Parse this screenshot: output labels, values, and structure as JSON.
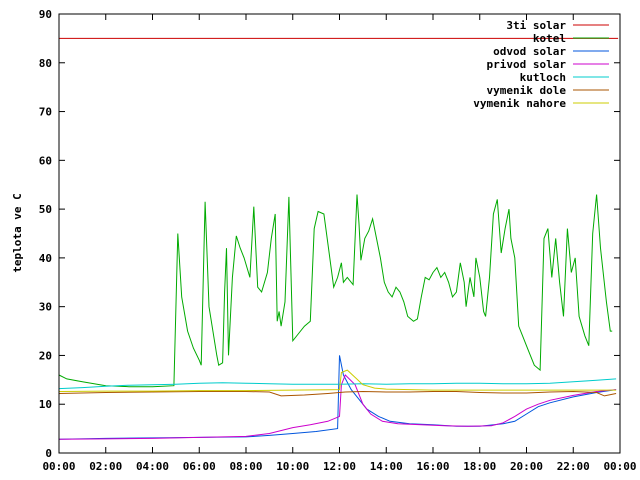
{
  "chart_data": {
    "type": "line",
    "title": "",
    "xlabel": "",
    "ylabel": "teplota ve C",
    "xlim": [
      "00:00",
      "24:00"
    ],
    "ylim": [
      0,
      90
    ],
    "x_ticks": [
      "00:00",
      "02:00",
      "04:00",
      "06:00",
      "08:00",
      "10:00",
      "12:00",
      "14:00",
      "16:00",
      "18:00",
      "20:00",
      "22:00",
      "00:00"
    ],
    "y_ticks": [
      0,
      10,
      20,
      30,
      40,
      50,
      60,
      70,
      80,
      90
    ],
    "grid": false,
    "legend_position": "top-right",
    "series": [
      {
        "name": "3ti solar",
        "color": "#cc0000",
        "points": [
          [
            "00:00",
            85
          ],
          [
            "23:55",
            85
          ]
        ]
      },
      {
        "name": "kotel",
        "color": "#00aa00",
        "points": [
          [
            "00:00",
            16
          ],
          [
            "00:20",
            15.2
          ],
          [
            "01:00",
            14.6
          ],
          [
            "02:00",
            13.8
          ],
          [
            "03:00",
            13.6
          ],
          [
            "04:00",
            13.6
          ],
          [
            "04:55",
            13.8
          ],
          [
            "05:05",
            45
          ],
          [
            "05:15",
            32
          ],
          [
            "05:30",
            25
          ],
          [
            "05:45",
            21.5
          ],
          [
            "06:00",
            19
          ],
          [
            "06:05",
            18
          ],
          [
            "06:15",
            51.5
          ],
          [
            "06:25",
            30
          ],
          [
            "06:35",
            25
          ],
          [
            "06:45",
            20
          ],
          [
            "06:50",
            18
          ],
          [
            "07:00",
            18.5
          ],
          [
            "07:05",
            33
          ],
          [
            "07:10",
            42
          ],
          [
            "07:15",
            20
          ],
          [
            "07:25",
            36
          ],
          [
            "07:35",
            44.5
          ],
          [
            "07:45",
            42
          ],
          [
            "07:55",
            40
          ],
          [
            "08:10",
            36
          ],
          [
            "08:20",
            50.5
          ],
          [
            "08:30",
            34
          ],
          [
            "08:40",
            33
          ],
          [
            "08:55",
            37
          ],
          [
            "09:05",
            44
          ],
          [
            "09:15",
            49
          ],
          [
            "09:20",
            27
          ],
          [
            "09:25",
            29
          ],
          [
            "09:30",
            26
          ],
          [
            "09:40",
            31
          ],
          [
            "09:50",
            52.5
          ],
          [
            "10:00",
            23
          ],
          [
            "10:15",
            24.5
          ],
          [
            "10:30",
            26
          ],
          [
            "10:45",
            27
          ],
          [
            "10:55",
            46
          ],
          [
            "11:05",
            49.5
          ],
          [
            "11:20",
            49
          ],
          [
            "11:35",
            40
          ],
          [
            "11:45",
            34
          ],
          [
            "11:55",
            36
          ],
          [
            "12:05",
            39
          ],
          [
            "12:10",
            35
          ],
          [
            "12:20",
            36
          ],
          [
            "12:35",
            34.5
          ],
          [
            "12:45",
            53
          ],
          [
            "12:50",
            47
          ],
          [
            "12:55",
            39.5
          ],
          [
            "13:05",
            44
          ],
          [
            "13:15",
            45.5
          ],
          [
            "13:25",
            48
          ],
          [
            "13:35",
            44
          ],
          [
            "13:45",
            40
          ],
          [
            "13:55",
            35
          ],
          [
            "14:05",
            33
          ],
          [
            "14:15",
            32
          ],
          [
            "14:25",
            34
          ],
          [
            "14:35",
            33
          ],
          [
            "14:45",
            31
          ],
          [
            "14:55",
            28
          ],
          [
            "15:10",
            27
          ],
          [
            "15:20",
            27.5
          ],
          [
            "15:30",
            32
          ],
          [
            "15:40",
            36
          ],
          [
            "15:50",
            35.5
          ],
          [
            "16:00",
            37
          ],
          [
            "16:10",
            38
          ],
          [
            "16:20",
            36
          ],
          [
            "16:30",
            37
          ],
          [
            "16:40",
            35
          ],
          [
            "16:50",
            32
          ],
          [
            "17:00",
            33
          ],
          [
            "17:10",
            39
          ],
          [
            "17:20",
            35
          ],
          [
            "17:25",
            30
          ],
          [
            "17:35",
            36
          ],
          [
            "17:45",
            32
          ],
          [
            "17:50",
            40
          ],
          [
            "18:00",
            36
          ],
          [
            "18:10",
            29
          ],
          [
            "18:15",
            28
          ],
          [
            "18:25",
            36
          ],
          [
            "18:35",
            49
          ],
          [
            "18:45",
            52
          ],
          [
            "18:55",
            41
          ],
          [
            "19:05",
            46
          ],
          [
            "19:15",
            50
          ],
          [
            "19:20",
            44
          ],
          [
            "19:30",
            40
          ],
          [
            "19:40",
            26
          ],
          [
            "19:50",
            24
          ],
          [
            "20:05",
            21
          ],
          [
            "20:20",
            18
          ],
          [
            "20:35",
            17
          ],
          [
            "20:45",
            44
          ],
          [
            "20:55",
            46
          ],
          [
            "21:05",
            36
          ],
          [
            "21:15",
            44
          ],
          [
            "21:25",
            35
          ],
          [
            "21:35",
            28
          ],
          [
            "21:45",
            46
          ],
          [
            "21:55",
            37
          ],
          [
            "22:05",
            40
          ],
          [
            "22:15",
            28
          ],
          [
            "22:30",
            24
          ],
          [
            "22:40",
            22
          ],
          [
            "22:50",
            45
          ],
          [
            "23:00",
            53
          ],
          [
            "23:10",
            42
          ],
          [
            "23:25",
            31
          ],
          [
            "23:35",
            25
          ],
          [
            "23:40",
            25
          ]
        ]
      },
      {
        "name": "odvod solar",
        "color": "#0055dd",
        "points": [
          [
            "00:00",
            2.8
          ],
          [
            "02:00",
            3.0
          ],
          [
            "04:00",
            3.1
          ],
          [
            "06:00",
            3.2
          ],
          [
            "08:00",
            3.3
          ],
          [
            "09:00",
            3.6
          ],
          [
            "10:00",
            4.0
          ],
          [
            "11:00",
            4.4
          ],
          [
            "11:55",
            5.0
          ],
          [
            "12:00",
            20
          ],
          [
            "12:10",
            16
          ],
          [
            "12:30",
            13
          ],
          [
            "12:50",
            11
          ],
          [
            "13:10",
            9
          ],
          [
            "13:40",
            7.5
          ],
          [
            "14:10",
            6.5
          ],
          [
            "15:00",
            6.0
          ],
          [
            "16:00",
            5.8
          ],
          [
            "17:00",
            5.5
          ],
          [
            "18:00",
            5.5
          ],
          [
            "19:00",
            6.0
          ],
          [
            "19:30",
            6.5
          ],
          [
            "20:00",
            8
          ],
          [
            "20:30",
            9.5
          ],
          [
            "21:00",
            10.3
          ],
          [
            "22:00",
            11.5
          ],
          [
            "23:00",
            12.4
          ],
          [
            "23:50",
            13.0
          ]
        ]
      },
      {
        "name": "privod solar",
        "color": "#cc00cc",
        "points": [
          [
            "00:00",
            2.8
          ],
          [
            "02:00",
            2.9
          ],
          [
            "04:00",
            3.0
          ],
          [
            "06:00",
            3.2
          ],
          [
            "08:00",
            3.4
          ],
          [
            "09:00",
            4.0
          ],
          [
            "10:00",
            5.2
          ],
          [
            "10:45",
            5.8
          ],
          [
            "11:30",
            6.5
          ],
          [
            "12:00",
            7.5
          ],
          [
            "12:05",
            14
          ],
          [
            "12:15",
            16
          ],
          [
            "12:40",
            14
          ],
          [
            "13:00",
            10
          ],
          [
            "13:20",
            8
          ],
          [
            "13:50",
            6.5
          ],
          [
            "14:30",
            6.0
          ],
          [
            "15:30",
            5.8
          ],
          [
            "16:30",
            5.6
          ],
          [
            "17:30",
            5.5
          ],
          [
            "18:30",
            5.6
          ],
          [
            "19:00",
            6.2
          ],
          [
            "19:30",
            7.5
          ],
          [
            "20:00",
            9.0
          ],
          [
            "20:30",
            10
          ],
          [
            "21:00",
            10.8
          ],
          [
            "22:00",
            11.8
          ],
          [
            "23:00",
            12.6
          ],
          [
            "23:50",
            13.0
          ]
        ]
      },
      {
        "name": "kutloch",
        "color": "#00cccc",
        "points": [
          [
            "00:00",
            13.2
          ],
          [
            "01:00",
            13.4
          ],
          [
            "02:00",
            13.7
          ],
          [
            "03:00",
            13.9
          ],
          [
            "04:00",
            14.0
          ],
          [
            "05:00",
            14.1
          ],
          [
            "06:00",
            14.3
          ],
          [
            "07:00",
            14.4
          ],
          [
            "08:00",
            14.3
          ],
          [
            "09:00",
            14.2
          ],
          [
            "10:00",
            14.1
          ],
          [
            "11:00",
            14.1
          ],
          [
            "12:00",
            14.1
          ],
          [
            "13:00",
            14.2
          ],
          [
            "14:00",
            14.1
          ],
          [
            "15:00",
            14.2
          ],
          [
            "16:00",
            14.2
          ],
          [
            "17:00",
            14.3
          ],
          [
            "18:00",
            14.3
          ],
          [
            "19:00",
            14.2
          ],
          [
            "20:00",
            14.2
          ],
          [
            "21:00",
            14.3
          ],
          [
            "22:00",
            14.6
          ],
          [
            "23:00",
            14.9
          ],
          [
            "23:50",
            15.2
          ]
        ]
      },
      {
        "name": "vymenik dole",
        "color": "#aa5500",
        "points": [
          [
            "00:00",
            12.2
          ],
          [
            "02:00",
            12.4
          ],
          [
            "04:00",
            12.5
          ],
          [
            "06:00",
            12.6
          ],
          [
            "08:00",
            12.6
          ],
          [
            "09:00",
            12.5
          ],
          [
            "09:30",
            11.7
          ],
          [
            "10:30",
            11.9
          ],
          [
            "11:30",
            12.2
          ],
          [
            "12:15",
            12.5
          ],
          [
            "13:00",
            12.6
          ],
          [
            "14:00",
            12.5
          ],
          [
            "15:00",
            12.5
          ],
          [
            "16:00",
            12.6
          ],
          [
            "17:00",
            12.6
          ],
          [
            "18:00",
            12.4
          ],
          [
            "19:00",
            12.3
          ],
          [
            "20:00",
            12.3
          ],
          [
            "21:00",
            12.5
          ],
          [
            "22:00",
            12.6
          ],
          [
            "23:00",
            12.4
          ],
          [
            "23:20",
            11.7
          ],
          [
            "23:50",
            12.2
          ]
        ]
      },
      {
        "name": "vymenik nahore",
        "color": "#cccc00",
        "points": [
          [
            "00:00",
            12.6
          ],
          [
            "02:00",
            12.7
          ],
          [
            "04:00",
            12.7
          ],
          [
            "06:00",
            12.8
          ],
          [
            "08:00",
            12.8
          ],
          [
            "10:00",
            12.9
          ],
          [
            "12:00",
            13.0
          ],
          [
            "12:05",
            16.5
          ],
          [
            "12:20",
            17
          ],
          [
            "12:40",
            15.5
          ],
          [
            "13:00",
            14
          ],
          [
            "13:30",
            13.3
          ],
          [
            "14:00",
            13.1
          ],
          [
            "15:00",
            13.0
          ],
          [
            "16:00",
            12.9
          ],
          [
            "17:00",
            12.9
          ],
          [
            "18:00",
            12.9
          ],
          [
            "19:00",
            12.9
          ],
          [
            "20:00",
            12.9
          ],
          [
            "21:00",
            12.9
          ],
          [
            "22:00",
            12.9
          ],
          [
            "23:00",
            12.9
          ],
          [
            "23:50",
            12.9
          ]
        ]
      }
    ]
  }
}
